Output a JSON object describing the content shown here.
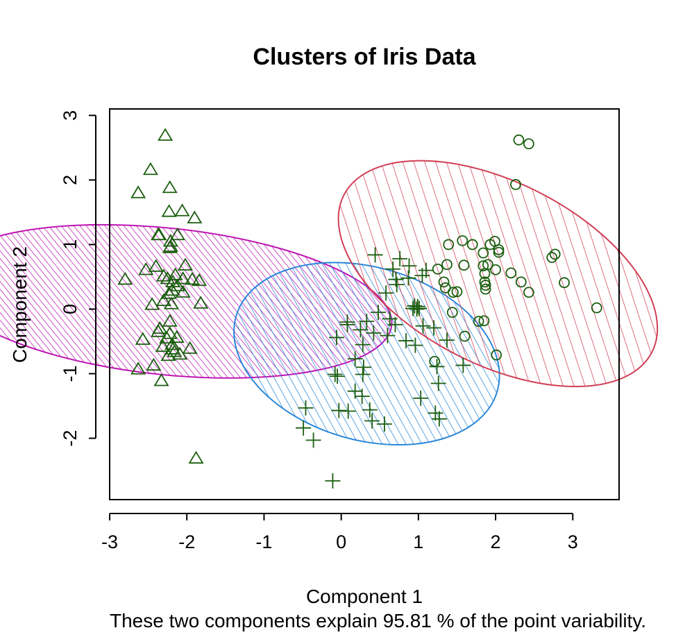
{
  "chart_data": {
    "type": "scatter",
    "title": "Clusters of Iris Data",
    "xlabel": "Component 1",
    "ylabel": "Component 2",
    "subtitle": "These two components explain 95.81 % of the point variability.",
    "xlim": [
      -3,
      3.6
    ],
    "ylim": [
      -2.95,
      3.1
    ],
    "xticks": [
      "-3",
      "-2",
      "-1",
      "0",
      "1",
      "2",
      "3"
    ],
    "xtick_values": [
      -3,
      -2,
      -1,
      0,
      1,
      2,
      3
    ],
    "yticks": [
      "-2",
      "-1",
      "0",
      "1",
      "2",
      "3"
    ],
    "ytick_values": [
      -2,
      -1,
      0,
      1,
      2,
      3
    ],
    "grid": false,
    "point_color": "#1a5e0e",
    "clusters": [
      {
        "id": 1,
        "marker": "triangle",
        "ellipse": {
          "cx": -2.27,
          "cy": 0.12,
          "rx": 0.95,
          "ry": 2.94,
          "angle_deg": 84.0,
          "color": "#be15b3",
          "hatch_angle_deg": 45,
          "hatch": "dense"
        },
        "points": [
          [
            -2.28,
            2.69
          ],
          [
            -2.47,
            2.16
          ],
          [
            -2.22,
            1.88
          ],
          [
            -2.63,
            1.8
          ],
          [
            -2.23,
            1.51
          ],
          [
            -2.06,
            1.52
          ],
          [
            -1.9,
            1.41
          ],
          [
            -2.36,
            1.15
          ],
          [
            -2.37,
            1.15
          ],
          [
            -2.12,
            1.15
          ],
          [
            -2.21,
            1.05
          ],
          [
            -2.22,
            0.95
          ],
          [
            -2.21,
            0.97
          ],
          [
            -2.4,
            0.66
          ],
          [
            -2.02,
            0.68
          ],
          [
            -2.53,
            0.61
          ],
          [
            -2.8,
            0.46
          ],
          [
            -2.3,
            0.51
          ],
          [
            -2.25,
            0.47
          ],
          [
            -2.15,
            0.53
          ],
          [
            -2.05,
            0.47
          ],
          [
            -1.93,
            0.46
          ],
          [
            -1.84,
            0.44
          ],
          [
            -2.18,
            0.42
          ],
          [
            -2.12,
            0.36
          ],
          [
            -2.19,
            0.29
          ],
          [
            -2.05,
            0.26
          ],
          [
            -2.23,
            0.24
          ],
          [
            -2.3,
            0.13
          ],
          [
            -2.2,
            0.08
          ],
          [
            -2.45,
            0.07
          ],
          [
            -1.82,
            0.09
          ],
          [
            -2.22,
            -0.19
          ],
          [
            -2.35,
            -0.3
          ],
          [
            -2.22,
            -0.38
          ],
          [
            -2.37,
            -0.35
          ],
          [
            -2.26,
            -0.45
          ],
          [
            -2.13,
            -0.44
          ],
          [
            -2.57,
            -0.47
          ],
          [
            -2.19,
            -0.55
          ],
          [
            -2.31,
            -0.58
          ],
          [
            -2.18,
            -0.62
          ],
          [
            -1.96,
            -0.61
          ],
          [
            -2.16,
            -0.66
          ],
          [
            -2.09,
            -0.7
          ],
          [
            -2.24,
            -0.72
          ],
          [
            -2.43,
            -0.87
          ],
          [
            -2.63,
            -0.93
          ],
          [
            -2.33,
            -1.11
          ],
          [
            -1.88,
            -2.31
          ]
        ]
      },
      {
        "id": 2,
        "marker": "plus",
        "ellipse": {
          "cx": 0.33,
          "cy": -0.69,
          "rx": 1.12,
          "ry": 1.76,
          "angle_deg": 74.0,
          "color": "#2a87d9",
          "hatch_angle_deg": 45,
          "hatch": "medium"
        },
        "points": [
          [
            0.44,
            0.84
          ],
          [
            0.76,
            0.78
          ],
          [
            0.88,
            0.67
          ],
          [
            0.67,
            0.62
          ],
          [
            1.1,
            0.6
          ],
          [
            1.05,
            0.52
          ],
          [
            0.87,
            0.48
          ],
          [
            0.71,
            0.46
          ],
          [
            0.72,
            0.38
          ],
          [
            0.58,
            0.25
          ],
          [
            0.95,
            0.05
          ],
          [
            0.99,
            0.04
          ],
          [
            0.93,
            0.01
          ],
          [
            0.98,
            0.0
          ],
          [
            1.01,
            0.01
          ],
          [
            0.48,
            -0.05
          ],
          [
            0.63,
            -0.15
          ],
          [
            0.33,
            -0.19
          ],
          [
            0.08,
            -0.2
          ],
          [
            0.08,
            -0.24
          ],
          [
            0.7,
            -0.24
          ],
          [
            1.06,
            -0.26
          ],
          [
            1.2,
            -0.29
          ],
          [
            0.25,
            -0.32
          ],
          [
            0.42,
            -0.37
          ],
          [
            0.6,
            -0.41
          ],
          [
            -0.06,
            -0.44
          ],
          [
            0.84,
            -0.49
          ],
          [
            0.28,
            -0.55
          ],
          [
            0.96,
            -0.56
          ],
          [
            1.37,
            -0.48
          ],
          [
            0.18,
            -0.77
          ],
          [
            1.24,
            -0.89
          ],
          [
            0.29,
            -0.9
          ],
          [
            1.58,
            -0.87
          ],
          [
            0.28,
            -1.01
          ],
          [
            -0.08,
            -1.01
          ],
          [
            -0.05,
            -1.04
          ],
          [
            1.26,
            -1.15
          ],
          [
            0.18,
            -1.27
          ],
          [
            1.03,
            -1.38
          ],
          [
            0.27,
            -1.35
          ],
          [
            -0.03,
            -1.57
          ],
          [
            0.09,
            -1.58
          ],
          [
            0.37,
            -1.56
          ],
          [
            1.22,
            -1.61
          ],
          [
            1.27,
            -1.7
          ],
          [
            0.4,
            -1.73
          ],
          [
            0.56,
            -1.78
          ],
          [
            -0.46,
            -1.53
          ],
          [
            -0.49,
            -1.84
          ],
          [
            -0.36,
            -2.03
          ],
          [
            -0.11,
            -2.66
          ]
        ]
      },
      {
        "id": 3,
        "marker": "circle",
        "ellipse": {
          "cx": 2.03,
          "cy": 0.55,
          "rx": 1.18,
          "ry": 2.24,
          "angle_deg": 63.0,
          "color": "#d13e55",
          "hatch_angle_deg": 45,
          "hatch": "sparse"
        },
        "points": [
          [
            2.3,
            2.62
          ],
          [
            2.43,
            2.56
          ],
          [
            2.26,
            1.93
          ],
          [
            1.39,
            1.0
          ],
          [
            1.57,
            1.06
          ],
          [
            1.7,
            1.0
          ],
          [
            1.93,
            1.0
          ],
          [
            1.99,
            1.05
          ],
          [
            2.04,
            0.92
          ],
          [
            2.04,
            0.88
          ],
          [
            1.84,
            0.87
          ],
          [
            2.77,
            0.85
          ],
          [
            2.73,
            0.8
          ],
          [
            1.9,
            0.69
          ],
          [
            1.59,
            0.68
          ],
          [
            1.84,
            0.67
          ],
          [
            1.37,
            0.69
          ],
          [
            1.25,
            0.62
          ],
          [
            2.0,
            0.61
          ],
          [
            2.2,
            0.56
          ],
          [
            1.86,
            0.55
          ],
          [
            2.33,
            0.42
          ],
          [
            2.89,
            0.41
          ],
          [
            1.33,
            0.42
          ],
          [
            1.86,
            0.42
          ],
          [
            1.87,
            0.37
          ],
          [
            1.35,
            0.33
          ],
          [
            1.45,
            0.26
          ],
          [
            1.5,
            0.27
          ],
          [
            2.43,
            0.26
          ],
          [
            1.87,
            0.31
          ],
          [
            3.31,
            0.02
          ],
          [
            1.44,
            -0.05
          ],
          [
            1.85,
            -0.18
          ],
          [
            1.78,
            -0.19
          ],
          [
            1.6,
            -0.42
          ],
          [
            1.21,
            -0.81
          ],
          [
            2.01,
            -0.71
          ]
        ]
      }
    ]
  }
}
